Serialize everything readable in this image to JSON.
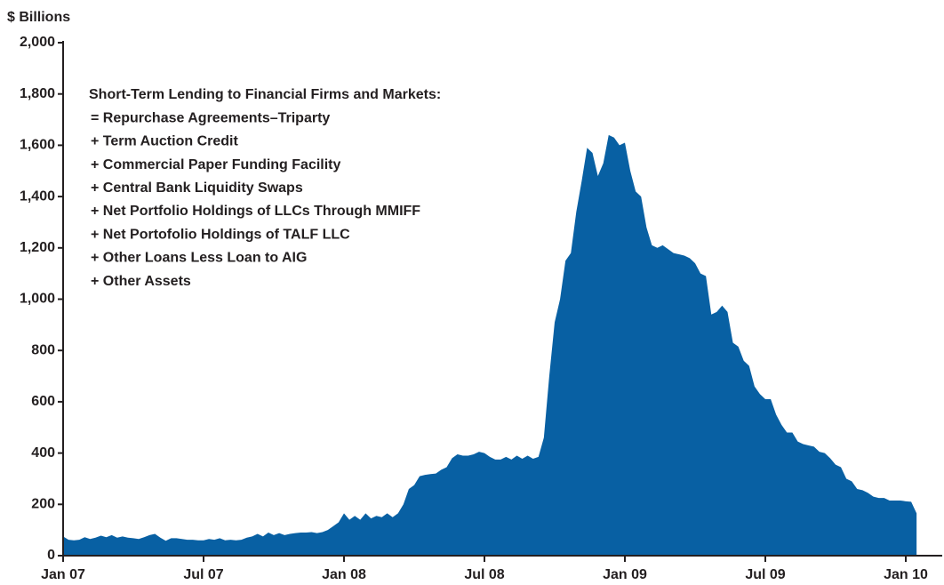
{
  "chart_data": {
    "type": "area",
    "y_label": "$ Billions",
    "annotation": [
      "Short-Term Lending to Financial Firms and Markets:",
      "= Repurchase Agreements–Triparty",
      "+ Term Auction Credit",
      "+ Commercial Paper Funding Facility",
      "+ Central Bank Liquidity Swaps",
      "+ Net Portfolio Holdings of LLCs Through MMIFF",
      "+ Net Portofolio Holdings of TALF LLC",
      "+ Other Loans Less Loan to AIG",
      "+ Other Assets"
    ],
    "color": "#0860a3",
    "categories": [
      "Jan 07",
      null,
      null,
      null,
      null,
      null,
      null,
      null,
      null,
      null,
      null,
      null,
      null,
      null,
      null,
      null,
      null,
      null,
      null,
      null,
      null,
      null,
      null,
      null,
      null,
      null,
      "Jul 07",
      null,
      null,
      null,
      null,
      null,
      null,
      null,
      null,
      null,
      null,
      null,
      null,
      null,
      null,
      null,
      null,
      null,
      null,
      null,
      null,
      null,
      null,
      null,
      null,
      null,
      "Jan 08",
      null,
      null,
      null,
      null,
      null,
      null,
      null,
      null,
      null,
      null,
      null,
      null,
      null,
      null,
      null,
      null,
      null,
      null,
      null,
      null,
      null,
      null,
      null,
      null,
      null,
      "Jul 08",
      null,
      null,
      null,
      null,
      null,
      null,
      null,
      null,
      null,
      null,
      null,
      null,
      null,
      null,
      null,
      null,
      null,
      null,
      null,
      null,
      null,
      null,
      null,
      null,
      null,
      "Jan 09",
      null,
      null,
      null,
      null,
      null,
      null,
      null,
      null,
      null,
      null,
      null,
      null,
      null,
      null,
      null,
      null,
      null,
      null,
      null,
      null,
      null,
      null,
      null,
      null,
      null,
      "Jul 09",
      null,
      null,
      null,
      null,
      null,
      null,
      null,
      null,
      null,
      null,
      null,
      null,
      null,
      null,
      null,
      null,
      null,
      null,
      null,
      null,
      null,
      null,
      null,
      null,
      null,
      "Jan 10",
      null,
      null
    ],
    "values": [
      75,
      62,
      60,
      62,
      72,
      65,
      70,
      78,
      72,
      80,
      70,
      75,
      70,
      68,
      65,
      72,
      80,
      85,
      70,
      58,
      68,
      68,
      65,
      62,
      62,
      60,
      60,
      65,
      62,
      68,
      60,
      62,
      60,
      62,
      70,
      75,
      85,
      75,
      90,
      80,
      88,
      80,
      85,
      88,
      90,
      90,
      92,
      88,
      92,
      100,
      115,
      130,
      165,
      140,
      155,
      140,
      165,
      145,
      155,
      150,
      165,
      150,
      165,
      200,
      260,
      275,
      310,
      315,
      318,
      320,
      335,
      345,
      380,
      395,
      390,
      390,
      395,
      405,
      400,
      385,
      375,
      375,
      385,
      375,
      390,
      378,
      390,
      378,
      385,
      460,
      700,
      910,
      1000,
      1150,
      1180,
      1340,
      1460,
      1590,
      1570,
      1480,
      1530,
      1640,
      1630,
      1600,
      1610,
      1500,
      1420,
      1400,
      1280,
      1210,
      1200,
      1210,
      1195,
      1180,
      1175,
      1170,
      1160,
      1140,
      1100,
      1090,
      940,
      950,
      975,
      950,
      830,
      815,
      760,
      740,
      660,
      630,
      610,
      610,
      550,
      510,
      480,
      480,
      445,
      435,
      430,
      425,
      405,
      400,
      380,
      355,
      345,
      300,
      290,
      260,
      255,
      245,
      230,
      225,
      225,
      215,
      215,
      215,
      212,
      210,
      165
    ],
    "ylim": [
      0,
      2000
    ],
    "yticks": [
      0,
      200,
      400,
      600,
      800,
      {
        "value": 1000,
        "label": "1,000"
      },
      {
        "value": 1200,
        "label": "1,200"
      },
      {
        "value": 1400,
        "label": "1,400"
      },
      {
        "value": 1600,
        "label": "1,600"
      },
      {
        "value": 1800,
        "label": "1,800"
      },
      {
        "value": 2000,
        "label": "2,000"
      }
    ]
  }
}
